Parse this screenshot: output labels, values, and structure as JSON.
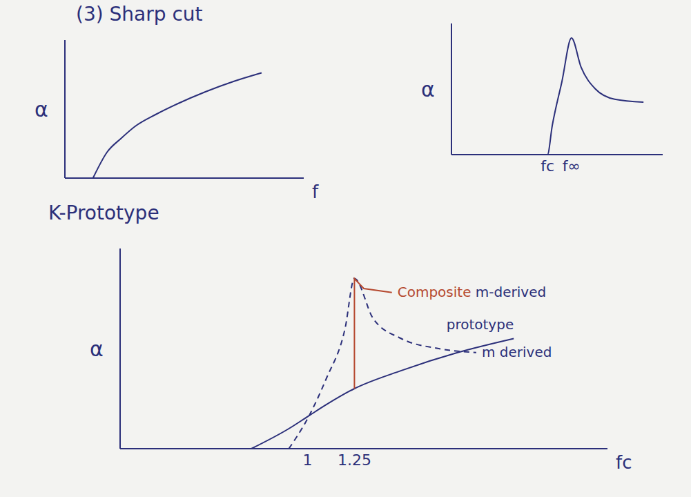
{
  "chart_data": [
    {
      "type": "line",
      "title": "(3) Sharp cut",
      "subtitle": "K-Prototype",
      "xlabel": "f",
      "ylabel": "α",
      "x": [
        0.4,
        0.6,
        0.8,
        1.0,
        1.3,
        1.6,
        2.0,
        2.4,
        2.8
      ],
      "values": [
        0,
        1.5,
        2.3,
        3,
        3.7,
        4.3,
        5,
        5.6,
        6.1
      ],
      "color": "#2b2f7a",
      "line_style": "solid",
      "xlim": [
        0,
        3.4
      ],
      "ylim": [
        0,
        8
      ],
      "xticks": [],
      "yticks": [],
      "tick_labels": false
    },
    {
      "type": "line",
      "ylabel": "α",
      "x": [
        0,
        1,
        1.05,
        1.15,
        1.25,
        1.35,
        1.5,
        1.7,
        2.0
      ],
      "values": [
        0,
        0,
        2,
        5,
        8,
        6,
        4.5,
        3.8,
        3.6
      ],
      "color": "#2b2f7a",
      "line_style": "solid",
      "xlim": [
        0,
        2.2
      ],
      "ylim": [
        0,
        9
      ],
      "xticks": [
        {
          "value": 1,
          "label": "fc"
        },
        {
          "value": 1.25,
          "label": "f∞"
        }
      ],
      "yticks": [],
      "tick_labels": "x"
    },
    {
      "type": "line",
      "xlabel": "fc",
      "ylabel": "α",
      "annotations": [
        "m-derived"
      ],
      "series": [
        {
          "name": "prototype",
          "color": "#2b2f7a",
          "line_style": "solid",
          "x": [
            0.7,
            0.9,
            1.0,
            1.1,
            1.25,
            1.5,
            1.8,
            2.1
          ],
          "values": [
            0,
            1,
            1.6,
            2.2,
            3,
            3.9,
            4.8,
            5.5
          ]
        },
        {
          "name": "m derived",
          "color": "#2b2f7a",
          "line_style": "dashed",
          "x": [
            0.9,
            1.0,
            1.1,
            1.2,
            1.25,
            1.35,
            1.5,
            1.7,
            1.9
          ],
          "values": [
            0,
            1.5,
            3.5,
            6,
            8.5,
            6.5,
            5.5,
            5,
            4.8
          ]
        },
        {
          "name": "Composite",
          "color": "#b5482f",
          "line_style": "solid",
          "x": [
            1.25,
            1.25,
            1.3,
            1.45
          ],
          "values": [
            3,
            8.5,
            8,
            7.8
          ]
        }
      ],
      "xlim": [
        0,
        2.6
      ],
      "ylim": [
        0,
        10
      ],
      "xticks": [
        1,
        1.25
      ],
      "yticks": [],
      "tick_labels": "x"
    }
  ]
}
